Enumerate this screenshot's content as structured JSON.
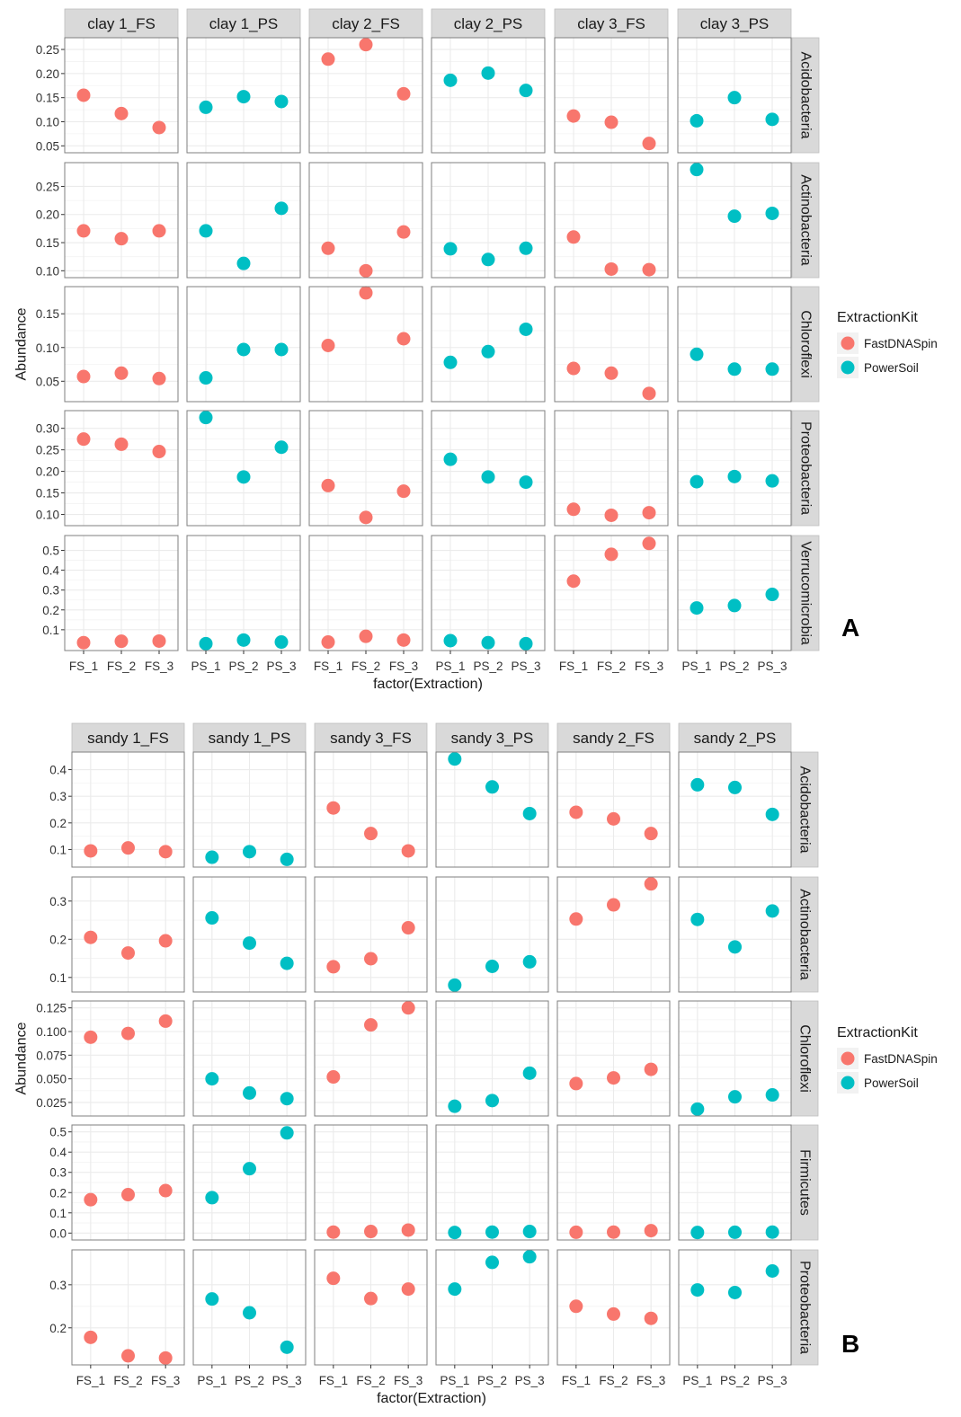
{
  "figure": {
    "colors": {
      "FastDNASpin": "#F8766D",
      "PowerSoil": "#00BFC4",
      "panel_bg": "#FFFFFF",
      "grid": "#EBEBEB",
      "strip_bg": "#D9D9D9",
      "panel_border": "#7F7F7F"
    }
  },
  "chart_data": [
    {
      "type": "scatter",
      "panel_letter": "A",
      "xlabel": "factor(Extraction)",
      "ylabel": "Abundance",
      "legend": {
        "title": "ExtractionKit",
        "placement": "right",
        "entries": [
          "FastDNASpin",
          "PowerSoil"
        ]
      },
      "grid": true,
      "columns": [
        {
          "label": "clay 1_FS",
          "kit": "FastDNASpin",
          "x": [
            "FS_1",
            "FS_2",
            "FS_3"
          ]
        },
        {
          "label": "clay 1_PS",
          "kit": "PowerSoil",
          "x": [
            "PS_1",
            "PS_2",
            "PS_3"
          ]
        },
        {
          "label": "clay 2_FS",
          "kit": "FastDNASpin",
          "x": [
            "FS_1",
            "FS_2",
            "FS_3"
          ]
        },
        {
          "label": "clay 2_PS",
          "kit": "PowerSoil",
          "x": [
            "PS_1",
            "PS_2",
            "PS_3"
          ]
        },
        {
          "label": "clay 3_FS",
          "kit": "FastDNASpin",
          "x": [
            "FS_1",
            "FS_2",
            "FS_3"
          ]
        },
        {
          "label": "clay 3_PS",
          "kit": "PowerSoil",
          "x": [
            "PS_1",
            "PS_2",
            "PS_3"
          ]
        }
      ],
      "rows": [
        {
          "label": "Acidobacteria",
          "ylim": [
            0.05,
            0.26
          ],
          "ticks": [
            0.05,
            0.1,
            0.15,
            0.2,
            0.25
          ],
          "tick_labels": [
            "0.05",
            "0.10",
            "0.15",
            "0.20",
            "0.25"
          ],
          "values": [
            [
              0.155,
              0.117,
              0.088
            ],
            [
              0.13,
              0.152,
              0.142
            ],
            [
              0.23,
              0.26,
              0.158
            ],
            [
              0.186,
              0.201,
              0.165
            ],
            [
              0.112,
              0.099,
              0.055
            ],
            [
              0.102,
              0.15,
              0.105
            ]
          ]
        },
        {
          "label": "Actinobacteria",
          "ylim": [
            0.1,
            0.28
          ],
          "ticks": [
            0.1,
            0.15,
            0.2,
            0.25
          ],
          "tick_labels": [
            "0.10",
            "0.15",
            "0.20",
            "0.25"
          ],
          "values": [
            [
              0.171,
              0.157,
              0.171
            ],
            [
              0.171,
              0.113,
              0.211
            ],
            [
              0.14,
              0.1,
              0.169
            ],
            [
              0.139,
              0.12,
              0.14
            ],
            [
              0.16,
              0.103,
              0.102
            ],
            [
              0.28,
              0.197,
              0.202
            ]
          ]
        },
        {
          "label": "Chloroflexi",
          "ylim": [
            0.03,
            0.18
          ],
          "ticks": [
            0.05,
            0.1,
            0.15
          ],
          "tick_labels": [
            "0.05",
            "0.10",
            "0.15"
          ],
          "values": [
            [
              0.057,
              0.062,
              0.054
            ],
            [
              0.055,
              0.097,
              0.097
            ],
            [
              0.103,
              0.181,
              0.113
            ],
            [
              0.078,
              0.094,
              0.127
            ],
            [
              0.069,
              0.062,
              0.032
            ],
            [
              0.09,
              0.068,
              0.068
            ]
          ]
        },
        {
          "label": "Proteobacteria",
          "ylim": [
            0.09,
            0.325
          ],
          "ticks": [
            0.1,
            0.15,
            0.2,
            0.25,
            0.3
          ],
          "tick_labels": [
            "0.10",
            "0.15",
            "0.20",
            "0.25",
            "0.30"
          ],
          "values": [
            [
              0.275,
              0.263,
              0.246
            ],
            [
              0.325,
              0.187,
              0.256
            ],
            [
              0.167,
              0.093,
              0.154
            ],
            [
              0.228,
              0.187,
              0.175
            ],
            [
              0.112,
              0.098,
              0.104
            ],
            [
              0.176,
              0.188,
              0.178
            ]
          ]
        },
        {
          "label": "Verrucomicrobia",
          "ylim": [
            0.03,
            0.54
          ],
          "ticks": [
            0.1,
            0.2,
            0.3,
            0.4,
            0.5
          ],
          "tick_labels": [
            "0.1",
            "0.2",
            "0.3",
            "0.4",
            "0.5"
          ],
          "values": [
            [
              0.035,
              0.042,
              0.043
            ],
            [
              0.03,
              0.048,
              0.038
            ],
            [
              0.038,
              0.067,
              0.048
            ],
            [
              0.045,
              0.035,
              0.03
            ],
            [
              0.345,
              0.48,
              0.535
            ],
            [
              0.21,
              0.222,
              0.278
            ]
          ]
        }
      ]
    },
    {
      "type": "scatter",
      "panel_letter": "B",
      "xlabel": "factor(Extraction)",
      "ylabel": "Abundance",
      "legend": {
        "title": "ExtractionKit",
        "placement": "right",
        "entries": [
          "FastDNASpin",
          "PowerSoil"
        ]
      },
      "grid": true,
      "columns": [
        {
          "label": "sandy 1_FS",
          "kit": "FastDNASpin",
          "x": [
            "FS_1",
            "FS_2",
            "FS_3"
          ]
        },
        {
          "label": "sandy 1_PS",
          "kit": "PowerSoil",
          "x": [
            "PS_1",
            "PS_2",
            "PS_3"
          ]
        },
        {
          "label": "sandy 3_FS",
          "kit": "FastDNASpin",
          "x": [
            "FS_1",
            "FS_2",
            "FS_3"
          ]
        },
        {
          "label": "sandy 3_PS",
          "kit": "PowerSoil",
          "x": [
            "PS_1",
            "PS_2",
            "PS_3"
          ]
        },
        {
          "label": "sandy 2_FS",
          "kit": "FastDNASpin",
          "x": [
            "FS_1",
            "FS_2",
            "FS_3"
          ]
        },
        {
          "label": "sandy 2_PS",
          "kit": "PowerSoil",
          "x": [
            "PS_1",
            "PS_2",
            "PS_3"
          ]
        }
      ],
      "rows": [
        {
          "label": "Acidobacteria",
          "ylim": [
            0.06,
            0.44
          ],
          "ticks": [
            0.1,
            0.2,
            0.3,
            0.4
          ],
          "tick_labels": [
            "0.1",
            "0.2",
            "0.3",
            "0.4"
          ],
          "values": [
            [
              0.095,
              0.106,
              0.092
            ],
            [
              0.071,
              0.092,
              0.063
            ],
            [
              0.256,
              0.16,
              0.095
            ],
            [
              0.44,
              0.335,
              0.235
            ],
            [
              0.24,
              0.215,
              0.16
            ],
            [
              0.343,
              0.333,
              0.232
            ]
          ]
        },
        {
          "label": "Actinobacteria",
          "ylim": [
            0.08,
            0.345
          ],
          "ticks": [
            0.1,
            0.2,
            0.3
          ],
          "tick_labels": [
            "0.1",
            "0.2",
            "0.3"
          ],
          "values": [
            [
              0.205,
              0.164,
              0.196
            ],
            [
              0.256,
              0.19,
              0.137
            ],
            [
              0.128,
              0.149,
              0.23
            ],
            [
              0.08,
              0.129,
              0.141
            ],
            [
              0.253,
              0.29,
              0.345
            ],
            [
              0.252,
              0.18,
              0.274
            ]
          ]
        },
        {
          "label": "Chloroflexi",
          "ylim": [
            0.018,
            0.125
          ],
          "ticks": [
            0.025,
            0.05,
            0.075,
            0.1,
            0.125
          ],
          "tick_labels": [
            "0.025",
            "0.050",
            "0.075",
            "0.100",
            "0.125"
          ],
          "values": [
            [
              0.094,
              0.098,
              0.111
            ],
            [
              0.05,
              0.035,
              0.029
            ],
            [
              0.052,
              0.107,
              0.125
            ],
            [
              0.021,
              0.027,
              0.056
            ],
            [
              0.045,
              0.051,
              0.06
            ],
            [
              0.018,
              0.031,
              0.033
            ]
          ]
        },
        {
          "label": "Firmicutes",
          "ylim": [
            0.0,
            0.5
          ],
          "ticks": [
            0.0,
            0.1,
            0.2,
            0.3,
            0.4,
            0.5
          ],
          "tick_labels": [
            "0.0",
            "0.1",
            "0.2",
            "0.3",
            "0.4",
            "0.5"
          ],
          "values": [
            [
              0.165,
              0.19,
              0.21
            ],
            [
              0.175,
              0.318,
              0.495
            ],
            [
              0.005,
              0.008,
              0.015
            ],
            [
              0.003,
              0.005,
              0.008
            ],
            [
              0.004,
              0.005,
              0.012
            ],
            [
              0.003,
              0.004,
              0.005
            ]
          ]
        },
        {
          "label": "Proteobacteria",
          "ylim": [
            0.13,
            0.365
          ],
          "ticks": [
            0.2,
            0.3
          ],
          "tick_labels": [
            "0.2",
            "0.3"
          ],
          "values": [
            [
              0.178,
              0.135,
              0.13
            ],
            [
              0.267,
              0.235,
              0.155
            ],
            [
              0.315,
              0.268,
              0.29
            ],
            [
              0.29,
              0.352,
              0.365
            ],
            [
              0.25,
              0.232,
              0.222
            ],
            [
              0.288,
              0.282,
              0.332
            ]
          ]
        }
      ]
    }
  ]
}
